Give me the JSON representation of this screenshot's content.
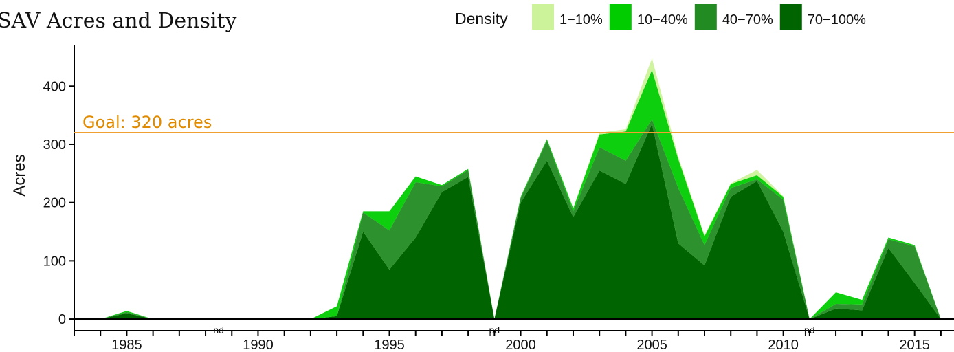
{
  "chart_data": {
    "type": "area",
    "title": "SAV Acres and Density",
    "ylabel": "Acres",
    "xlabel": "",
    "xlim": [
      1983,
      2016.5
    ],
    "ylim": [
      -20,
      470
    ],
    "x_ticks": [
      1985,
      1990,
      1995,
      2000,
      2005,
      2010,
      2015
    ],
    "y_ticks": [
      0,
      100,
      200,
      300,
      400
    ],
    "legend": {
      "title": "Density",
      "position": "top"
    },
    "goal": {
      "value": 320,
      "label": "Goal: 320 acres",
      "color": "#f0a030",
      "label_color": "#e08a00"
    },
    "no_data_markers": [
      {
        "x": 1988.5,
        "label": "nd"
      },
      {
        "x": 1999,
        "label": "pd"
      },
      {
        "x": 2011,
        "label": "pd"
      }
    ],
    "x": [
      1984,
      1985,
      1986,
      1987,
      1988,
      1989,
      1990,
      1991,
      1992,
      1993,
      1994,
      1995,
      1996,
      1997,
      1998,
      1999,
      2000,
      2001,
      2002,
      2003,
      2004,
      2005,
      2006,
      2007,
      2008,
      2009,
      2010,
      2011,
      2012,
      2013,
      2014,
      2015,
      2016
    ],
    "series": [
      {
        "name": "70−100%",
        "color": "#006400",
        "values": [
          0,
          10,
          0,
          0,
          0,
          0,
          0,
          0,
          0,
          5,
          150,
          85,
          140,
          218,
          244,
          0,
          200,
          272,
          175,
          255,
          232,
          335,
          130,
          92,
          210,
          237,
          150,
          0,
          18,
          15,
          122,
          62,
          0
        ]
      },
      {
        "name": "40−70%",
        "color": "#228b22",
        "values": [
          0,
          2,
          0,
          0,
          0,
          0,
          0,
          0,
          0,
          0,
          33,
          67,
          95,
          10,
          12,
          0,
          8,
          35,
          10,
          40,
          40,
          8,
          95,
          35,
          15,
          3,
          55,
          0,
          8,
          10,
          15,
          63,
          0
        ]
      },
      {
        "name": "10−40%",
        "color": "#00cc00",
        "values": [
          0,
          2,
          0,
          0,
          0,
          0,
          0,
          0,
          0,
          17,
          2,
          33,
          10,
          2,
          2,
          0,
          2,
          2,
          5,
          22,
          50,
          85,
          50,
          15,
          7,
          7,
          5,
          0,
          20,
          8,
          3,
          2,
          0
        ]
      },
      {
        "name": "1−10%",
        "color": "#ccf29a",
        "values": [
          0,
          0,
          0,
          0,
          0,
          0,
          0,
          0,
          0,
          0,
          0,
          0,
          0,
          0,
          0,
          0,
          0,
          0,
          0,
          3,
          4,
          20,
          4,
          2,
          1,
          9,
          1,
          0,
          0,
          0,
          0,
          0,
          0
        ]
      }
    ]
  }
}
